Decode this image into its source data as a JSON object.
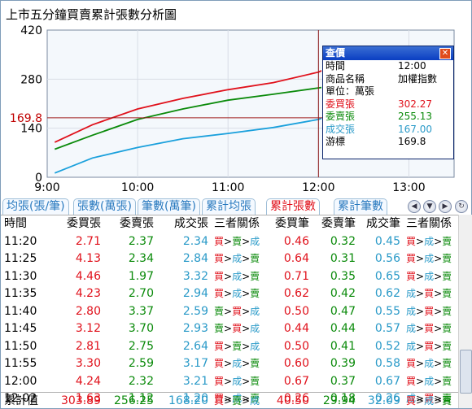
{
  "title": "上市五分鐘買賣累計張數分析圖",
  "chart": {
    "y_ticks": [
      "420",
      "280",
      "140",
      "0"
    ],
    "y_values": [
      420,
      280,
      140,
      0
    ],
    "x_ticks": [
      "9:00",
      "10:00",
      "11:00",
      "12:00",
      "13:00"
    ],
    "cursor_value_label": "169.8",
    "cursor_time_label": "12:00",
    "colors": {
      "buy": "#e0111b",
      "sell": "#0a8a0a",
      "deal": "#1aa0dc",
      "cursor": "#8b1a1a",
      "axis_bg": "#f2f6fb"
    },
    "chart_data": {
      "type": "line",
      "x": [
        "9:05",
        "9:30",
        "10:00",
        "10:30",
        "11:00",
        "11:30",
        "12:00",
        "12:02"
      ],
      "series": [
        {
          "name": "委買張",
          "values": [
            100,
            150,
            195,
            225,
            250,
            270,
            300,
            303.89
          ]
        },
        {
          "name": "委賣張",
          "values": [
            80,
            120,
            165,
            195,
            220,
            237,
            255,
            256.25
          ]
        },
        {
          "name": "成交張",
          "values": [
            12,
            55,
            85,
            110,
            125,
            142,
            165,
            168.2
          ]
        }
      ],
      "ylim": [
        0,
        420
      ],
      "cursor": 169.8
    }
  },
  "infobox": {
    "title": "查價",
    "rows": [
      {
        "label": "時間",
        "value": "12:00",
        "color": "#000000"
      },
      {
        "label": "商品名稱",
        "value": "加權指數",
        "color": "#000000"
      },
      {
        "label": "單位：萬張",
        "value": "",
        "color": "#000000"
      },
      {
        "label": "委買張",
        "value": "302.27",
        "color": "#e0111b"
      },
      {
        "label": "委賣張",
        "value": "255.13",
        "color": "#0a8a0a"
      },
      {
        "label": "成交張",
        "value": "167.00",
        "color": "#2a9ac8"
      },
      {
        "label": "游標",
        "value": "169.8",
        "color": "#000000"
      }
    ]
  },
  "tabs": [
    {
      "label": "均張(張/筆)",
      "active": false
    },
    {
      "label": "張數(萬張)",
      "active": false
    },
    {
      "label": "筆數(萬筆)",
      "active": false
    },
    {
      "label": "累計均張",
      "active": false
    },
    {
      "label": "累計張數",
      "active": true
    },
    {
      "label": "累計筆數",
      "active": false
    }
  ],
  "table": {
    "headers": [
      "時間",
      "委買張",
      "委賣張",
      "成交張",
      "三者關係",
      "委買筆",
      "委賣筆",
      "成交筆",
      "三者關係"
    ],
    "rows": [
      [
        "11:20",
        "2.71",
        "2.37",
        "2.34",
        [
          [
            "買",
            "r"
          ],
          [
            ">",
            "k"
          ],
          [
            "賣",
            "g"
          ],
          [
            ">",
            "k"
          ],
          [
            "成",
            "b"
          ]
        ],
        "0.46",
        "0.32",
        "0.45",
        [
          [
            "買",
            "r"
          ],
          [
            ">",
            "k"
          ],
          [
            "成",
            "b"
          ],
          [
            ">",
            "k"
          ],
          [
            "賣",
            "g"
          ]
        ]
      ],
      [
        "11:25",
        "4.13",
        "2.34",
        "2.84",
        [
          [
            "買",
            "r"
          ],
          [
            ">",
            "k"
          ],
          [
            "成",
            "b"
          ],
          [
            ">",
            "k"
          ],
          [
            "賣",
            "g"
          ]
        ],
        "0.64",
        "0.31",
        "0.56",
        [
          [
            "買",
            "r"
          ],
          [
            ">",
            "k"
          ],
          [
            "成",
            "b"
          ],
          [
            ">",
            "k"
          ],
          [
            "賣",
            "g"
          ]
        ]
      ],
      [
        "11:30",
        "4.46",
        "1.97",
        "3.32",
        [
          [
            "買",
            "r"
          ],
          [
            ">",
            "k"
          ],
          [
            "成",
            "b"
          ],
          [
            ">",
            "k"
          ],
          [
            "賣",
            "g"
          ]
        ],
        "0.71",
        "0.35",
        "0.65",
        [
          [
            "買",
            "r"
          ],
          [
            ">",
            "k"
          ],
          [
            "成",
            "b"
          ],
          [
            ">",
            "k"
          ],
          [
            "賣",
            "g"
          ]
        ]
      ],
      [
        "11:35",
        "4.23",
        "2.70",
        "2.94",
        [
          [
            "買",
            "r"
          ],
          [
            ">",
            "k"
          ],
          [
            "成",
            "b"
          ],
          [
            ">",
            "k"
          ],
          [
            "賣",
            "g"
          ]
        ],
        "0.62",
        "0.42",
        "0.62",
        [
          [
            "成",
            "b"
          ],
          [
            ">",
            "k"
          ],
          [
            "買",
            "r"
          ],
          [
            ">",
            "k"
          ],
          [
            "賣",
            "g"
          ]
        ]
      ],
      [
        "11:40",
        "2.80",
        "3.37",
        "2.59",
        [
          [
            "賣",
            "g"
          ],
          [
            ">",
            "k"
          ],
          [
            "買",
            "r"
          ],
          [
            ">",
            "k"
          ],
          [
            "成",
            "b"
          ]
        ],
        "0.50",
        "0.47",
        "0.55",
        [
          [
            "成",
            "b"
          ],
          [
            ">",
            "k"
          ],
          [
            "買",
            "r"
          ],
          [
            ">",
            "k"
          ],
          [
            "賣",
            "g"
          ]
        ]
      ],
      [
        "11:45",
        "3.12",
        "3.70",
        "2.93",
        [
          [
            "賣",
            "g"
          ],
          [
            ">",
            "k"
          ],
          [
            "買",
            "r"
          ],
          [
            ">",
            "k"
          ],
          [
            "成",
            "b"
          ]
        ],
        "0.44",
        "0.44",
        "0.57",
        [
          [
            "成",
            "b"
          ],
          [
            ">",
            "k"
          ],
          [
            "買",
            "r"
          ],
          [
            ">",
            "k"
          ],
          [
            "賣",
            "g"
          ]
        ]
      ],
      [
        "11:50",
        "2.81",
        "2.75",
        "2.64",
        [
          [
            "買",
            "r"
          ],
          [
            ">",
            "k"
          ],
          [
            "賣",
            "g"
          ],
          [
            ">",
            "k"
          ],
          [
            "成",
            "b"
          ]
        ],
        "0.50",
        "0.41",
        "0.52",
        [
          [
            "成",
            "b"
          ],
          [
            ">",
            "k"
          ],
          [
            "買",
            "r"
          ],
          [
            ">",
            "k"
          ],
          [
            "賣",
            "g"
          ]
        ]
      ],
      [
        "11:55",
        "3.30",
        "2.59",
        "3.17",
        [
          [
            "買",
            "r"
          ],
          [
            ">",
            "k"
          ],
          [
            "成",
            "b"
          ],
          [
            ">",
            "k"
          ],
          [
            "賣",
            "g"
          ]
        ],
        "0.60",
        "0.39",
        "0.58",
        [
          [
            "買",
            "r"
          ],
          [
            ">",
            "k"
          ],
          [
            "成",
            "b"
          ],
          [
            ">",
            "k"
          ],
          [
            "賣",
            "g"
          ]
        ]
      ],
      [
        "12:00",
        "4.24",
        "2.32",
        "3.21",
        [
          [
            "買",
            "r"
          ],
          [
            ">",
            "k"
          ],
          [
            "成",
            "b"
          ],
          [
            ">",
            "k"
          ],
          [
            "賣",
            "g"
          ]
        ],
        "0.67",
        "0.37",
        "0.67",
        [
          [
            "買",
            "r"
          ],
          [
            ">",
            "k"
          ],
          [
            "成",
            "b"
          ],
          [
            ">",
            "k"
          ],
          [
            "賣",
            "g"
          ]
        ]
      ],
      [
        "12:02",
        "1.63",
        "1.12",
        "1.20",
        [
          [
            "買",
            "r"
          ],
          [
            ">",
            "k"
          ],
          [
            "成",
            "b"
          ],
          [
            ">",
            "k"
          ],
          [
            "賣",
            "g"
          ]
        ],
        "0.26",
        "0.18",
        "0.26",
        [
          [
            "成",
            "b"
          ],
          [
            ">",
            "k"
          ],
          [
            "買",
            "r"
          ],
          [
            ">",
            "k"
          ],
          [
            "賣",
            "g"
          ]
        ]
      ]
    ]
  },
  "footer": {
    "label": "累計值",
    "buy": "303.89",
    "sell": "256.25",
    "deal": "168.20",
    "rel": [
      [
        "買",
        "r"
      ],
      [
        ">",
        "k"
      ],
      [
        "賣",
        "g"
      ],
      [
        ">",
        "k"
      ],
      [
        "成",
        "b"
      ]
    ],
    "buy_n": "40.50",
    "sell_n": "29.94",
    "deal_n": "32.09",
    "rel_n": [
      [
        "買",
        "r"
      ],
      [
        ">",
        "k"
      ],
      [
        "成",
        "b"
      ],
      [
        ">",
        "k"
      ],
      [
        "賣",
        "g"
      ]
    ]
  }
}
